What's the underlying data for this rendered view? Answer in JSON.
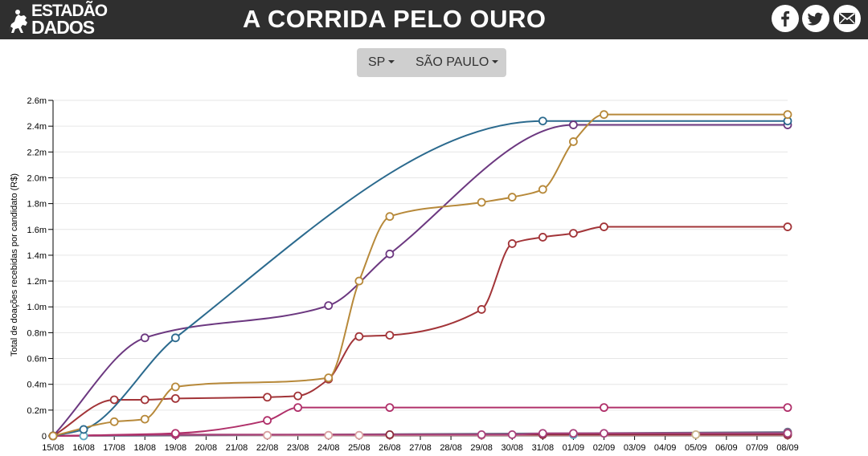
{
  "header": {
    "logo_line1": "ESTADÃO",
    "logo_line2": "DADOS",
    "title": "A CORRIDA PELO OURO",
    "background": "#2f2f2f",
    "social_icons": [
      "facebook-icon",
      "twitter-icon",
      "email-icon"
    ]
  },
  "selector": {
    "state": "SP",
    "city": "SÃO PAULO"
  },
  "chart_data": {
    "type": "line",
    "ylabel": "Total de doações recebidas por candidato (R$)",
    "xlabel": "",
    "x": [
      "15/08",
      "16/08",
      "17/08",
      "18/08",
      "19/08",
      "20/08",
      "21/08",
      "22/08",
      "23/08",
      "24/08",
      "25/08",
      "26/08",
      "27/08",
      "28/08",
      "29/08",
      "30/08",
      "31/08",
      "01/09",
      "02/09",
      "03/09",
      "04/09",
      "05/09",
      "06/09",
      "07/09",
      "08/09"
    ],
    "yticks": [
      0,
      0.2,
      0.4,
      0.6,
      0.8,
      1.0,
      1.2,
      1.4,
      1.6,
      1.8,
      2.0,
      2.2,
      2.4,
      2.6
    ],
    "ytick_labels": [
      "0",
      "0.2m",
      "0.4m",
      "0.6m",
      "0.8m",
      "1.0m",
      "1.2m",
      "1.4m",
      "1.6m",
      "1.8m",
      "2.0m",
      "2.2m",
      "2.4m",
      "2.6m"
    ],
    "ylim": [
      0,
      2.6
    ],
    "grid": true,
    "series": [
      {
        "color": "#b7893a",
        "points": [
          [
            "15/08",
            0
          ],
          [
            "17/08",
            0.11
          ],
          [
            "18/08",
            0.13
          ],
          [
            "19/08",
            0.38
          ],
          [
            "24/08",
            0.45
          ],
          [
            "25/08",
            1.2
          ],
          [
            "26/08",
            1.7
          ],
          [
            "29/08",
            1.81
          ],
          [
            "30/08",
            1.85
          ],
          [
            "31/08",
            1.91
          ],
          [
            "01/09",
            2.28
          ],
          [
            "02/09",
            2.49
          ],
          [
            "08/09",
            2.49
          ]
        ]
      },
      {
        "color": "#2b6a8e",
        "points": [
          [
            "15/08",
            0
          ],
          [
            "16/08",
            0.05
          ],
          [
            "19/08",
            0.76
          ],
          [
            "31/08",
            2.44
          ],
          [
            "08/09",
            2.44
          ]
        ]
      },
      {
        "color": "#6c3880",
        "points": [
          [
            "15/08",
            0
          ],
          [
            "18/08",
            0.76
          ],
          [
            "24/08",
            1.01
          ],
          [
            "26/08",
            1.41
          ],
          [
            "01/09",
            2.41
          ],
          [
            "08/09",
            2.41
          ]
        ]
      },
      {
        "color": "#a23438",
        "points": [
          [
            "15/08",
            0
          ],
          [
            "17/08",
            0.28
          ],
          [
            "18/08",
            0.28
          ],
          [
            "19/08",
            0.29
          ],
          [
            "22/08",
            0.3
          ],
          [
            "23/08",
            0.31
          ],
          [
            "24/08",
            0.44
          ],
          [
            "25/08",
            0.77
          ],
          [
            "26/08",
            0.78
          ],
          [
            "29/08",
            0.98
          ],
          [
            "30/08",
            1.49
          ],
          [
            "31/08",
            1.54
          ],
          [
            "01/09",
            1.57
          ],
          [
            "02/09",
            1.62
          ],
          [
            "08/09",
            1.62
          ]
        ]
      },
      {
        "color": "#b0306a",
        "points": [
          [
            "15/08",
            0
          ],
          [
            "19/08",
            0.02
          ],
          [
            "22/08",
            0.12
          ],
          [
            "23/08",
            0.22
          ],
          [
            "26/08",
            0.22
          ],
          [
            "02/09",
            0.22
          ],
          [
            "08/09",
            0.22
          ]
        ]
      },
      {
        "color": "#a8407a",
        "points": [
          [
            "15/08",
            0
          ],
          [
            "19/08",
            0.01
          ],
          [
            "29/08",
            0.01
          ],
          [
            "30/08",
            0.01
          ],
          [
            "31/08",
            0.02
          ],
          [
            "01/09",
            0.02
          ],
          [
            "02/09",
            0.02
          ],
          [
            "08/09",
            0.02
          ]
        ]
      },
      {
        "color": "#8a2a3a",
        "points": [
          [
            "15/08",
            0
          ],
          [
            "19/08",
            0.01
          ],
          [
            "26/08",
            0.01
          ],
          [
            "31/08",
            0.01
          ],
          [
            "08/09",
            0.01
          ]
        ]
      },
      {
        "color": "#6e6e8a",
        "points": [
          [
            "15/08",
            0
          ],
          [
            "08/09",
            0.03
          ]
        ]
      },
      {
        "color": "#d9a0a0",
        "points": [
          [
            "15/08",
            0
          ],
          [
            "22/08",
            0.005
          ],
          [
            "24/08",
            0.005
          ],
          [
            "25/08",
            0.005
          ],
          [
            "26/08",
            0.005
          ],
          [
            "29/08",
            0.005
          ],
          [
            "08/09",
            0.005
          ]
        ]
      },
      {
        "color": "#5fa8c0",
        "points": [
          [
            "15/08",
            0
          ],
          [
            "16/08",
            0.0
          ],
          [
            "01/09",
            0.01
          ],
          [
            "08/09",
            0.01
          ]
        ]
      },
      {
        "color": "#c8b48a",
        "points": [
          [
            "15/08",
            0
          ],
          [
            "05/09",
            0.01
          ],
          [
            "08/09",
            0.01
          ]
        ]
      }
    ]
  }
}
